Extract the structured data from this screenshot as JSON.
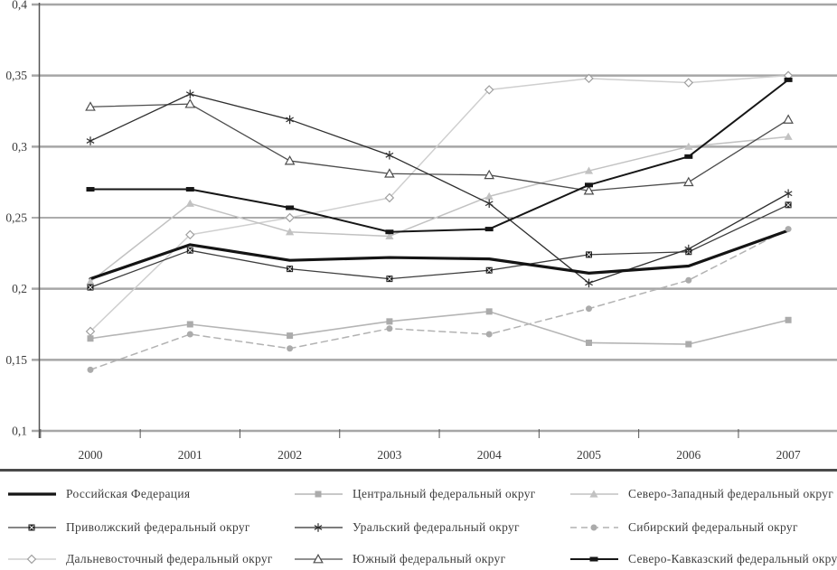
{
  "chart_data": {
    "type": "line",
    "title": "",
    "xlabel": "",
    "ylabel": "",
    "x_labels": [
      "2000",
      "2001",
      "2002",
      "2003",
      "2004",
      "2005",
      "2006",
      "2007"
    ],
    "y_ticks": [
      0.4,
      0.35,
      0.3,
      0.25,
      0.2,
      0.15,
      0.1
    ],
    "y_tick_labels": [
      "0,4",
      "0,35",
      "0,3",
      "0,25",
      "0,2",
      "0,15",
      "0,1"
    ],
    "ylim": [
      0.1,
      0.4
    ],
    "grid": true,
    "legend_position": "bottom",
    "colors": {
      "grid_major": "#a6a6a6",
      "grid_thin": "#5a5a5a",
      "axis": "#555555",
      "label_text": "#3a3a3a"
    },
    "series": [
      {
        "name": "Российская Федерация",
        "marker": "none",
        "color": "#141414",
        "width": 3.2,
        "dash": "none",
        "values": [
          0.207,
          0.231,
          0.22,
          0.222,
          0.221,
          0.211,
          0.216,
          0.241
        ]
      },
      {
        "name": "Центральный федеральный округ",
        "marker": "square",
        "color": "#b5b5b5",
        "width": 1.6,
        "dash": "none",
        "values": [
          0.165,
          0.175,
          0.167,
          0.177,
          0.184,
          0.162,
          0.161,
          0.178
        ]
      },
      {
        "name": "Северо-Западный федеральный округ",
        "marker": "triangle",
        "color": "#c2c2c2",
        "width": 1.5,
        "dash": "none",
        "values": [
          0.205,
          0.26,
          0.24,
          0.237,
          0.265,
          0.283,
          0.3,
          0.307
        ]
      },
      {
        "name": "Приволжский федеральный округ",
        "marker": "square-x",
        "color": "#3d3d3d",
        "width": 1.3,
        "dash": "none",
        "values": [
          0.201,
          0.227,
          0.214,
          0.207,
          0.213,
          0.224,
          0.226,
          0.259
        ]
      },
      {
        "name": "Уральский федеральный округ",
        "marker": "asterisk",
        "color": "#2e2e2e",
        "width": 1.3,
        "dash": "none",
        "values": [
          0.304,
          0.337,
          0.319,
          0.294,
          0.26,
          0.204,
          0.228,
          0.267
        ]
      },
      {
        "name": "Сибирский федеральный округ",
        "marker": "circle",
        "color": "#b2b2b2",
        "width": 1.5,
        "dash": "7,5",
        "values": [
          0.143,
          0.168,
          0.158,
          0.172,
          0.168,
          0.186,
          0.206,
          0.242
        ]
      },
      {
        "name": "Дальневосточный федеральный округ",
        "marker": "diamond-open",
        "color": "#cfcfcf",
        "width": 1.5,
        "dash": "none",
        "values": [
          0.17,
          0.238,
          0.25,
          0.264,
          0.34,
          0.348,
          0.345,
          0.35
        ]
      },
      {
        "name": "Южный федеральный округ",
        "marker": "triangle-open",
        "color": "#4d4d4d",
        "width": 1.3,
        "dash": "none",
        "values": [
          0.328,
          0.33,
          0.29,
          0.281,
          0.28,
          0.269,
          0.275,
          0.319
        ]
      },
      {
        "name": "Северо-Кавказский федеральный округ",
        "marker": "dash",
        "color": "#161616",
        "width": 2.0,
        "dash": "none",
        "values": [
          0.27,
          0.27,
          0.257,
          0.24,
          0.242,
          0.273,
          0.293,
          0.347
        ]
      }
    ]
  }
}
